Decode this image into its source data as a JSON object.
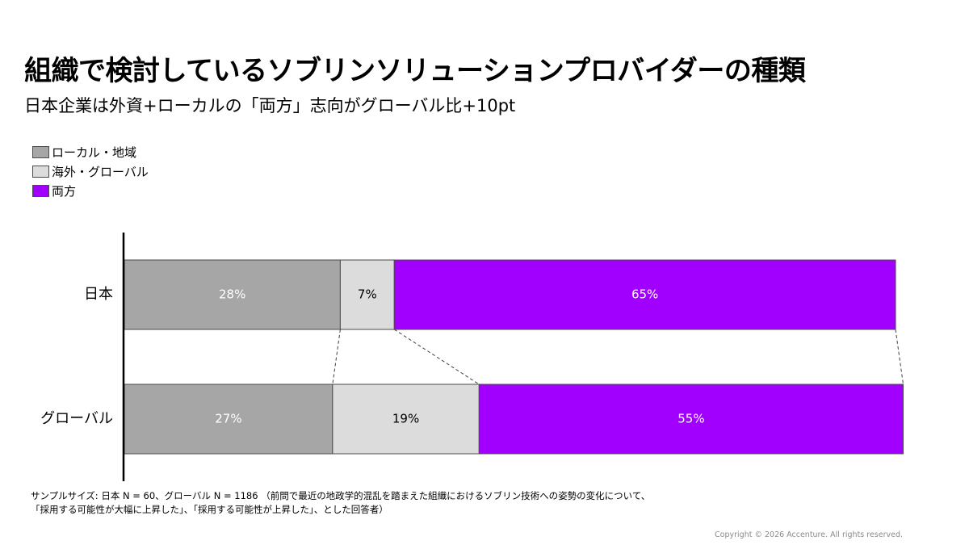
{
  "title": "組織で検討しているソブリンソリューションプロバイダーの種類",
  "subtitle": "日本企業は外資+ローカルの「両方」志向がグローバル比+10pt",
  "colors": {
    "local": "#a6a6a6",
    "overseas": "#dcdcdc",
    "both": "#a100ff",
    "axis": "#000000",
    "dash": "#404040"
  },
  "chart_data": {
    "type": "bar",
    "orientation": "horizontal",
    "stacked": true,
    "percent": true,
    "categories": [
      "日本",
      "グローバル"
    ],
    "series": [
      {
        "name": "ローカル・地域",
        "values": [
          28,
          27
        ],
        "labels": [
          "28%",
          "27%"
        ]
      },
      {
        "name": "海外・グローバル",
        "values": [
          7,
          19
        ],
        "labels": [
          "7%",
          "19%"
        ]
      },
      {
        "name": "両方",
        "values": [
          65,
          55
        ],
        "labels": [
          "65%",
          "55%"
        ]
      }
    ],
    "xlim": [
      0,
      100
    ],
    "legend": "top-left",
    "connector_lines": true
  },
  "footnote": {
    "line1": "サンプルサイズ: 日本 N = 60、グローバル N = 1186 （前問で最近の地政学的混乱を踏まえた組織におけるソブリン技術への姿勢の変化について、",
    "line2": "「採用する可能性が大幅に上昇した」、「採用する可能性が上昇した」、とした回答者）"
  },
  "copyright": "Copyright © 2026 Accenture. All rights reserved."
}
